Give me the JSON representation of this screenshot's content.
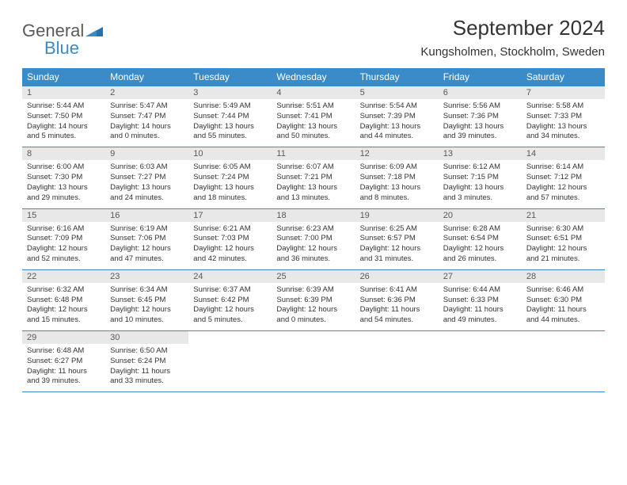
{
  "logo": {
    "text1": "General",
    "text2": "Blue"
  },
  "title": "September 2024",
  "location": "Kungsholmen, Stockholm, Sweden",
  "weekdays": [
    "Sunday",
    "Monday",
    "Tuesday",
    "Wednesday",
    "Thursday",
    "Friday",
    "Saturday"
  ],
  "header_bg": "#3b8bc8",
  "daynum_bg": "#e8e8e8",
  "rule_color": "#3b8bc8",
  "days": [
    {
      "n": "1",
      "sr": "5:44 AM",
      "ss": "7:50 PM",
      "dl": "14 hours and 5 minutes."
    },
    {
      "n": "2",
      "sr": "5:47 AM",
      "ss": "7:47 PM",
      "dl": "14 hours and 0 minutes."
    },
    {
      "n": "3",
      "sr": "5:49 AM",
      "ss": "7:44 PM",
      "dl": "13 hours and 55 minutes."
    },
    {
      "n": "4",
      "sr": "5:51 AM",
      "ss": "7:41 PM",
      "dl": "13 hours and 50 minutes."
    },
    {
      "n": "5",
      "sr": "5:54 AM",
      "ss": "7:39 PM",
      "dl": "13 hours and 44 minutes."
    },
    {
      "n": "6",
      "sr": "5:56 AM",
      "ss": "7:36 PM",
      "dl": "13 hours and 39 minutes."
    },
    {
      "n": "7",
      "sr": "5:58 AM",
      "ss": "7:33 PM",
      "dl": "13 hours and 34 minutes."
    },
    {
      "n": "8",
      "sr": "6:00 AM",
      "ss": "7:30 PM",
      "dl": "13 hours and 29 minutes."
    },
    {
      "n": "9",
      "sr": "6:03 AM",
      "ss": "7:27 PM",
      "dl": "13 hours and 24 minutes."
    },
    {
      "n": "10",
      "sr": "6:05 AM",
      "ss": "7:24 PM",
      "dl": "13 hours and 18 minutes."
    },
    {
      "n": "11",
      "sr": "6:07 AM",
      "ss": "7:21 PM",
      "dl": "13 hours and 13 minutes."
    },
    {
      "n": "12",
      "sr": "6:09 AM",
      "ss": "7:18 PM",
      "dl": "13 hours and 8 minutes."
    },
    {
      "n": "13",
      "sr": "6:12 AM",
      "ss": "7:15 PM",
      "dl": "13 hours and 3 minutes."
    },
    {
      "n": "14",
      "sr": "6:14 AM",
      "ss": "7:12 PM",
      "dl": "12 hours and 57 minutes."
    },
    {
      "n": "15",
      "sr": "6:16 AM",
      "ss": "7:09 PM",
      "dl": "12 hours and 52 minutes."
    },
    {
      "n": "16",
      "sr": "6:19 AM",
      "ss": "7:06 PM",
      "dl": "12 hours and 47 minutes."
    },
    {
      "n": "17",
      "sr": "6:21 AM",
      "ss": "7:03 PM",
      "dl": "12 hours and 42 minutes."
    },
    {
      "n": "18",
      "sr": "6:23 AM",
      "ss": "7:00 PM",
      "dl": "12 hours and 36 minutes."
    },
    {
      "n": "19",
      "sr": "6:25 AM",
      "ss": "6:57 PM",
      "dl": "12 hours and 31 minutes."
    },
    {
      "n": "20",
      "sr": "6:28 AM",
      "ss": "6:54 PM",
      "dl": "12 hours and 26 minutes."
    },
    {
      "n": "21",
      "sr": "6:30 AM",
      "ss": "6:51 PM",
      "dl": "12 hours and 21 minutes."
    },
    {
      "n": "22",
      "sr": "6:32 AM",
      "ss": "6:48 PM",
      "dl": "12 hours and 15 minutes."
    },
    {
      "n": "23",
      "sr": "6:34 AM",
      "ss": "6:45 PM",
      "dl": "12 hours and 10 minutes."
    },
    {
      "n": "24",
      "sr": "6:37 AM",
      "ss": "6:42 PM",
      "dl": "12 hours and 5 minutes."
    },
    {
      "n": "25",
      "sr": "6:39 AM",
      "ss": "6:39 PM",
      "dl": "12 hours and 0 minutes."
    },
    {
      "n": "26",
      "sr": "6:41 AM",
      "ss": "6:36 PM",
      "dl": "11 hours and 54 minutes."
    },
    {
      "n": "27",
      "sr": "6:44 AM",
      "ss": "6:33 PM",
      "dl": "11 hours and 49 minutes."
    },
    {
      "n": "28",
      "sr": "6:46 AM",
      "ss": "6:30 PM",
      "dl": "11 hours and 44 minutes."
    },
    {
      "n": "29",
      "sr": "6:48 AM",
      "ss": "6:27 PM",
      "dl": "11 hours and 39 minutes."
    },
    {
      "n": "30",
      "sr": "6:50 AM",
      "ss": "6:24 PM",
      "dl": "11 hours and 33 minutes."
    }
  ],
  "labels": {
    "sunrise": "Sunrise: ",
    "sunset": "Sunset: ",
    "daylight": "Daylight: "
  }
}
